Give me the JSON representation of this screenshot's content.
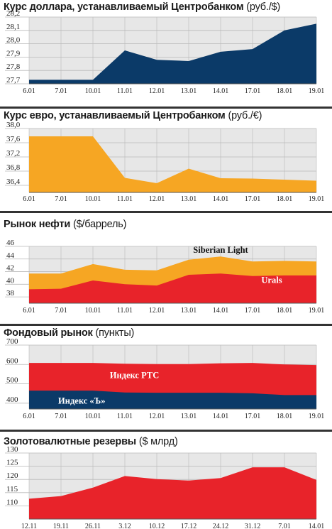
{
  "colors": {
    "navy": "#0b3a68",
    "orange": "#f6a623",
    "red": "#e8232a",
    "grid": "#b9b9b9",
    "plot_bg": "#e7e7e7",
    "label_white": "#ffffff",
    "label_dark": "#111111"
  },
  "chart_data": [
    {
      "id": "usd",
      "type": "area",
      "title": "Курс доллара, устанавливаемый Центробанком",
      "unit": "(руб./$)",
      "categories": [
        "6.01",
        "7.01",
        "10.01",
        "11.01",
        "12.01",
        "13.01",
        "14.01",
        "17.01",
        "18.01",
        "19.01"
      ],
      "ylim": [
        27.7,
        28.2
      ],
      "yticks": [
        27.7,
        27.8,
        27.9,
        28.0,
        28.1,
        28.2
      ],
      "ytick_labels": [
        "27,7",
        "27,8",
        "27,9",
        "28,0",
        "28,1",
        "28,2"
      ],
      "series": [
        {
          "values": [
            27.73,
            27.73,
            27.73,
            27.95,
            27.88,
            27.87,
            27.94,
            27.96,
            28.1,
            28.15
          ],
          "color": "navy"
        }
      ]
    },
    {
      "id": "eur",
      "type": "area",
      "title": "Курс евро, устанавливаемый Центробанком",
      "unit": "(руб./€)",
      "categories": [
        "6.01",
        "7.01",
        "10.01",
        "11.01",
        "12.01",
        "13.01",
        "14.01",
        "17.01",
        "18.01",
        "19.01"
      ],
      "ylim": [
        36.2,
        38.0
      ],
      "yticks": [
        36.4,
        36.8,
        37.2,
        37.6,
        38.0
      ],
      "ytick_labels": [
        "36,4",
        "36,8",
        "37,2",
        "37,6",
        "38,0"
      ],
      "series": [
        {
          "values": [
            37.78,
            37.78,
            37.78,
            36.61,
            36.46,
            36.87,
            36.6,
            36.59,
            36.56,
            36.53
          ],
          "color": "orange"
        }
      ]
    },
    {
      "id": "oil",
      "type": "area",
      "title": "Рынок нефти",
      "unit": "($/баррель)",
      "categories": [
        "6.01",
        "7.01",
        "10.01",
        "11.01",
        "12.01",
        "13.01",
        "14.01",
        "17.01",
        "18.01",
        "19.01"
      ],
      "ylim": [
        37.0,
        46.0
      ],
      "yticks": [
        38,
        40,
        42,
        44,
        46
      ],
      "ytick_labels": [
        "38",
        "40",
        "42",
        "44",
        "46"
      ],
      "series": [
        {
          "name": "Siberian Light",
          "values": [
            41.7,
            41.7,
            43.2,
            42.3,
            42.2,
            43.9,
            44.4,
            43.6,
            43.7,
            43.6
          ],
          "color": "orange"
        },
        {
          "name": "Urals",
          "values": [
            39.2,
            39.3,
            40.6,
            40.0,
            39.8,
            41.5,
            41.7,
            41.3,
            41.4,
            41.4
          ],
          "color": "red"
        }
      ],
      "labels": [
        {
          "text": "Siberian Light",
          "at_category": 6.0,
          "at_value": 45.0,
          "color": "label_dark"
        },
        {
          "text": "Urals",
          "at_category": 7.6,
          "at_value": 40.2,
          "color": "label_white"
        }
      ]
    },
    {
      "id": "stock",
      "type": "area",
      "title": "Фондовый рынок",
      "unit": "(пункты)",
      "categories": [
        "6.01",
        "7.01",
        "10.01",
        "11.01",
        "12.01",
        "13.01",
        "14.01",
        "17.01",
        "18.01",
        "19.01"
      ],
      "ylim": [
        370,
        700
      ],
      "yticks": [
        400,
        500,
        600,
        700
      ],
      "ytick_labels": [
        "400",
        "500",
        "600",
        "700"
      ],
      "series": [
        {
          "name": "Индекс РТС",
          "values": [
            608,
            608,
            608,
            604,
            602,
            602,
            606,
            608,
            600,
            597
          ],
          "color": "red"
        },
        {
          "name": "Индекс «Ъ»",
          "values": [
            465,
            465,
            465,
            455,
            454,
            454,
            454,
            451,
            442,
            442
          ],
          "color": "navy"
        }
      ],
      "labels": [
        {
          "text": "Индекс РТС",
          "at_category": 3.3,
          "at_value": 530,
          "color": "label_white"
        },
        {
          "text": "Индекс «Ъ»",
          "at_category": 1.65,
          "at_value": 397,
          "color": "label_white"
        }
      ]
    },
    {
      "id": "reserves",
      "type": "area",
      "title": "Золотовалютные резервы",
      "unit": "($ млрд)",
      "categories": [
        "12.11",
        "19.11",
        "26.11",
        "3.12",
        "10.12",
        "17.12",
        "24.12",
        "31.12",
        "7.01",
        "14.01"
      ],
      "ylim": [
        105,
        130
      ],
      "yticks": [
        110,
        115,
        120,
        125,
        130
      ],
      "ytick_labels": [
        "110",
        "115",
        "120",
        "125",
        "130"
      ],
      "series": [
        {
          "values": [
            112.7,
            113.7,
            116.9,
            121.3,
            120.1,
            119.6,
            120.5,
            124.6,
            124.6,
            119.8
          ],
          "color": "red"
        }
      ]
    }
  ]
}
